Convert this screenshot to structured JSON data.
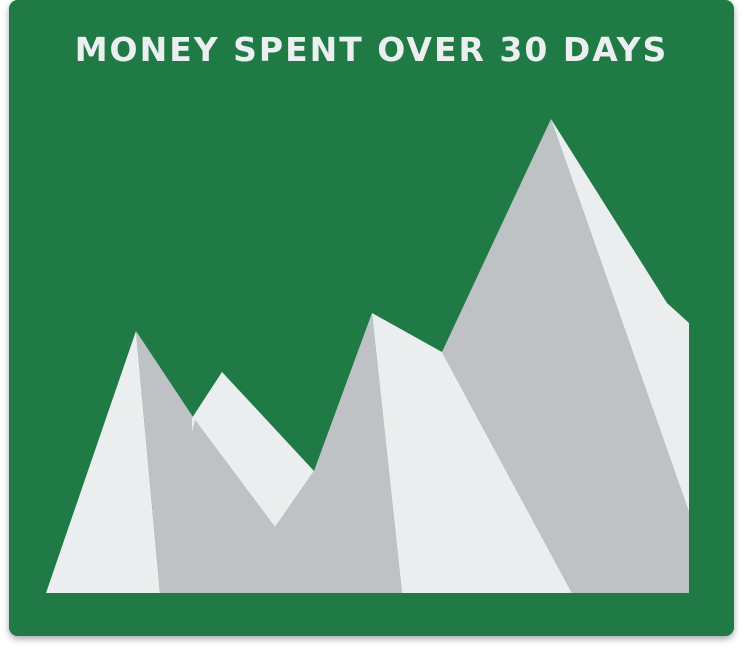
{
  "colors": {
    "background": "#1f7a45",
    "title": "#eceff0",
    "lit_face": "#eaeeef",
    "shade_face": "#bfc2c5"
  },
  "chart_data": {
    "type": "area",
    "style": "pictogram-mountains",
    "title": "MONEY SPENT OVER 30 DAYS",
    "xlabel": "",
    "ylabel": "",
    "grid": false,
    "legend": "none"
  }
}
